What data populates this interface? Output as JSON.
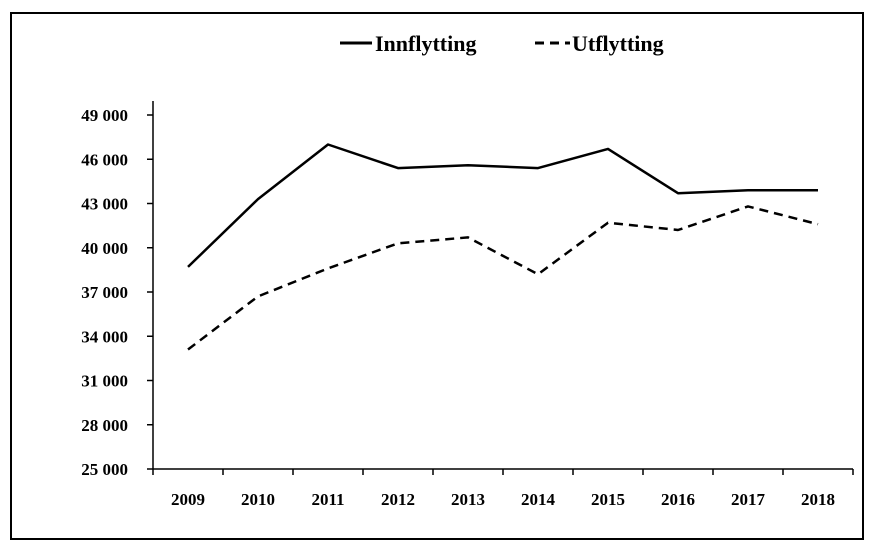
{
  "chart_data": {
    "type": "line",
    "title": "",
    "xlabel": "",
    "ylabel": "",
    "categories": [
      "2009",
      "2010",
      "2011",
      "2012",
      "2013",
      "2014",
      "2015",
      "2016",
      "2017",
      "2018"
    ],
    "series": [
      {
        "name": "Innflytting",
        "style": "solid",
        "values": [
          38700,
          43300,
          47000,
          45400,
          45600,
          45400,
          46700,
          43700,
          43900,
          43900
        ]
      },
      {
        "name": "Utflytting",
        "style": "dashed",
        "values": [
          33100,
          36700,
          38600,
          40300,
          40700,
          38200,
          41700,
          41200,
          42800,
          41600
        ]
      }
    ],
    "ylim": [
      25000,
      49000
    ],
    "yticks": [
      25000,
      28000,
      31000,
      34000,
      37000,
      40000,
      43000,
      46000,
      49000
    ],
    "ytick_labels": [
      "25 000",
      "28 000",
      "31 000",
      "34 000",
      "37 000",
      "40 000",
      "43 000",
      "46 000",
      "49 000"
    ],
    "grid": false,
    "legend_position": "top-center",
    "line_color": "#000000"
  }
}
